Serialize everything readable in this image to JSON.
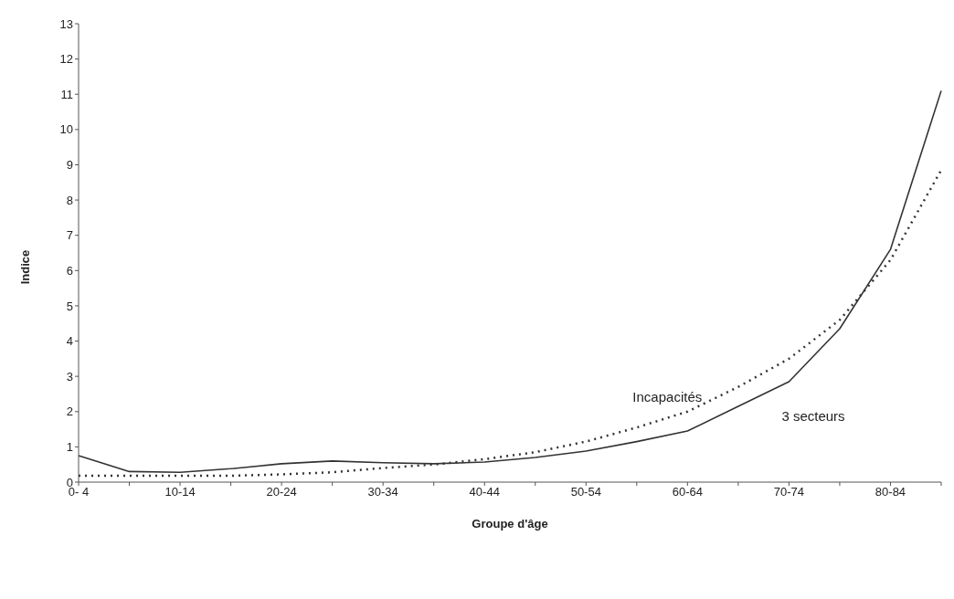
{
  "chart_data": {
    "type": "line",
    "xlabel": "Groupe d'âge",
    "ylabel": "Indice",
    "categories": [
      "0- 4",
      null,
      "10-14",
      null,
      "20-24",
      null,
      "30-34",
      null,
      "40-44",
      null,
      "50-54",
      null,
      "60-64",
      null,
      "70-74",
      null,
      "80-84",
      null
    ],
    "series": [
      {
        "name": "3 secteurs",
        "color": "#333333",
        "line_style": "solid",
        "values": [
          0.75,
          0.3,
          0.28,
          0.38,
          0.52,
          0.6,
          0.55,
          0.52,
          0.57,
          0.7,
          0.88,
          1.15,
          1.45,
          2.15,
          2.85,
          4.35,
          6.6,
          11.1
        ]
      },
      {
        "name": "Incapacités",
        "color": "#333333",
        "line_style": "dotted",
        "values": [
          0.18,
          0.18,
          0.18,
          0.18,
          0.22,
          0.28,
          0.4,
          0.5,
          0.65,
          0.85,
          1.15,
          1.55,
          2.0,
          2.7,
          3.5,
          4.6,
          6.3,
          8.85
        ]
      }
    ],
    "ylim": [
      0,
      13
    ],
    "yticks": [
      0,
      1,
      2,
      3,
      4,
      5,
      6,
      7,
      8,
      9,
      10,
      11,
      12,
      13
    ],
    "grid": false,
    "legend": false,
    "marker": "none"
  }
}
